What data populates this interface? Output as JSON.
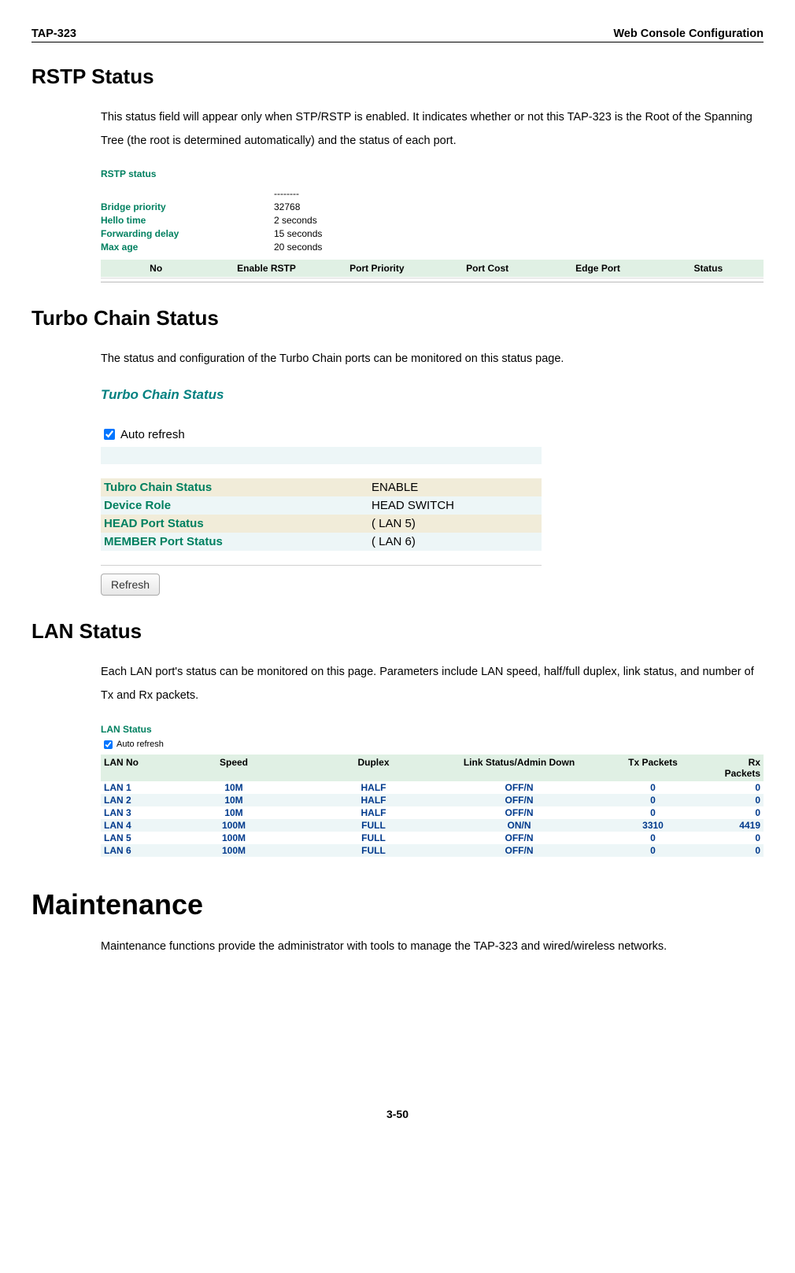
{
  "header": {
    "left": "TAP-323",
    "right": "Web Console Configuration"
  },
  "rstp": {
    "heading": "RSTP Status",
    "body": "This status field will appear only when STP/RSTP is enabled. It indicates whether or not this TAP-323 is the Root of the Spanning Tree (the root is determined automatically) and the status of each port.",
    "shot": {
      "title": "RSTP status",
      "kv": [
        {
          "k": "Bridge priority",
          "v": "32768"
        },
        {
          "k": "Hello time",
          "v": "2 seconds"
        },
        {
          "k": "Forwarding delay",
          "v": "15 seconds"
        },
        {
          "k": "Max age",
          "v": "20 seconds"
        }
      ],
      "dashes": "--------",
      "columns": [
        "No",
        "Enable RSTP",
        "Port Priority",
        "Port Cost",
        "Edge Port",
        "Status"
      ]
    }
  },
  "turbo": {
    "heading": "Turbo Chain Status",
    "body": "The status and configuration of the Turbo Chain ports can be monitored on this status page.",
    "shot": {
      "title": "Turbo Chain Status",
      "auto_label": "Auto refresh",
      "rows": [
        {
          "k": "Tubro Chain Status",
          "v": "ENABLE",
          "bg": "bg1"
        },
        {
          "k": "Device Role",
          "v": "HEAD SWITCH",
          "bg": "bg2"
        },
        {
          "k": "HEAD Port Status",
          "v": "( LAN 5)",
          "bg": "bg1"
        },
        {
          "k": "MEMBER Port Status",
          "v": "( LAN 6)",
          "bg": "bg2"
        }
      ],
      "button": "Refresh"
    }
  },
  "lan": {
    "heading": "LAN Status",
    "body": "Each LAN port's status can be monitored on this page. Parameters include LAN speed, half/full duplex, link status, and number of Tx and Rx packets.",
    "shot": {
      "title": "LAN Status",
      "auto_label": "Auto refresh",
      "columns": [
        "LAN No",
        "Speed",
        "Duplex",
        "Link Status/Admin Down",
        "Tx Packets",
        "Rx Packets"
      ],
      "rows": [
        {
          "lan": "LAN 1",
          "speed": "10M",
          "dup": "HALF",
          "link": "OFF/N",
          "tx": "0",
          "rx": "0",
          "alt": false
        },
        {
          "lan": "LAN 2",
          "speed": "10M",
          "dup": "HALF",
          "link": "OFF/N",
          "tx": "0",
          "rx": "0",
          "alt": true
        },
        {
          "lan": "LAN 3",
          "speed": "10M",
          "dup": "HALF",
          "link": "OFF/N",
          "tx": "0",
          "rx": "0",
          "alt": false
        },
        {
          "lan": "LAN 4",
          "speed": "100M",
          "dup": "FULL",
          "link": "ON/N",
          "tx": "3310",
          "rx": "4419",
          "alt": true
        },
        {
          "lan": "LAN 5",
          "speed": "100M",
          "dup": "FULL",
          "link": "OFF/N",
          "tx": "0",
          "rx": "0",
          "alt": false
        },
        {
          "lan": "LAN 6",
          "speed": "100M",
          "dup": "FULL",
          "link": "OFF/N",
          "tx": "0",
          "rx": "0",
          "alt": true
        }
      ]
    }
  },
  "maintenance": {
    "heading": "Maintenance",
    "body": "Maintenance functions provide the administrator with tools to manage the TAP-323 and wired/wireless networks."
  },
  "footer": "3-50"
}
